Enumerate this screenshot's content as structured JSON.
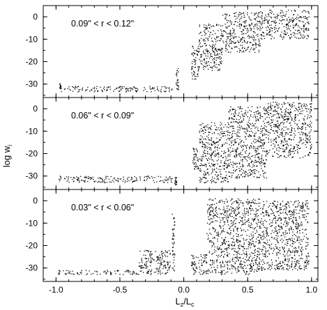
{
  "chart_data": {
    "type": "scatter",
    "x_axis": {
      "range": [
        -1.1,
        1.05
      ],
      "ticks": [
        -1.0,
        -0.5,
        0.0,
        0.5,
        1.0
      ],
      "tick_labels": [
        "-1.0",
        "-0.5",
        "0.0",
        "0.5",
        "1.0"
      ],
      "label_main": "L",
      "label_sub": "z",
      "label_sep": "/L",
      "label_sub2": "c"
    },
    "y_axis": {
      "range": [
        -36,
        5
      ],
      "ticks": [
        0,
        -10,
        -20,
        -30
      ],
      "tick_labels": [
        "0",
        "-10",
        "-20",
        "-30"
      ],
      "label_main": "log w",
      "label_sub": "i"
    },
    "color": "#000000",
    "grid": false,
    "panels": [
      {
        "label": "0.09\" < r < 0.12\"",
        "bands": [
          {
            "x": [
              -0.98,
              -0.09
            ],
            "y": [
              -33.5,
              -31.0
            ]
          },
          {
            "x": [
              -0.97,
              -0.96
            ],
            "y": [
              -32.0,
              -29.5
            ]
          },
          {
            "x": [
              -0.06,
              -0.04
            ],
            "y": [
              -33.0,
              -23.0
            ]
          },
          {
            "x": [
              0.06,
              0.12
            ],
            "y": [
              -28.0,
              -13.0
            ]
          },
          {
            "x": [
              0.12,
              0.3
            ],
            "y": [
              -24.0,
              -3.0
            ]
          },
          {
            "x": [
              0.3,
              0.6
            ],
            "y": [
              -16.0,
              2.0
            ]
          },
          {
            "x": [
              0.6,
              0.98
            ],
            "y": [
              -10.0,
              3.0
            ]
          }
        ]
      },
      {
        "label": "0.06\" < r < 0.09\"",
        "bands": [
          {
            "x": [
              -0.98,
              -0.09
            ],
            "y": [
              -33.0,
              -30.0
            ]
          },
          {
            "x": [
              -0.07,
              -0.05
            ],
            "y": [
              -34.0,
              -30.5
            ]
          },
          {
            "x": [
              0.07,
              0.12
            ],
            "y": [
              -27.0,
              -17.0
            ]
          },
          {
            "x": [
              0.12,
              0.35
            ],
            "y": [
              -33.0,
              -6.0
            ]
          },
          {
            "x": [
              0.35,
              0.65
            ],
            "y": [
              -31.0,
              1.0
            ]
          },
          {
            "x": [
              0.65,
              1.0
            ],
            "y": [
              -22.0,
              3.0
            ]
          }
        ]
      },
      {
        "label": "0.03\" < r < 0.06\"",
        "bands": [
          {
            "x": [
              -0.98,
              -0.12
            ],
            "y": [
              -33.0,
              -31.0
            ]
          },
          {
            "x": [
              -0.35,
              -0.1
            ],
            "y": [
              -31.0,
              -22.0
            ]
          },
          {
            "x": [
              -0.09,
              -0.07
            ],
            "y": [
              -32.0,
              -6.0
            ]
          },
          {
            "x": [
              0.06,
              0.18
            ],
            "y": [
              -33.0,
              -24.0
            ]
          },
          {
            "x": [
              0.18,
              0.6
            ],
            "y": [
              -33.0,
              1.0
            ]
          },
          {
            "x": [
              0.6,
              0.98
            ],
            "y": [
              -31.0,
              0.0
            ]
          }
        ]
      }
    ]
  }
}
